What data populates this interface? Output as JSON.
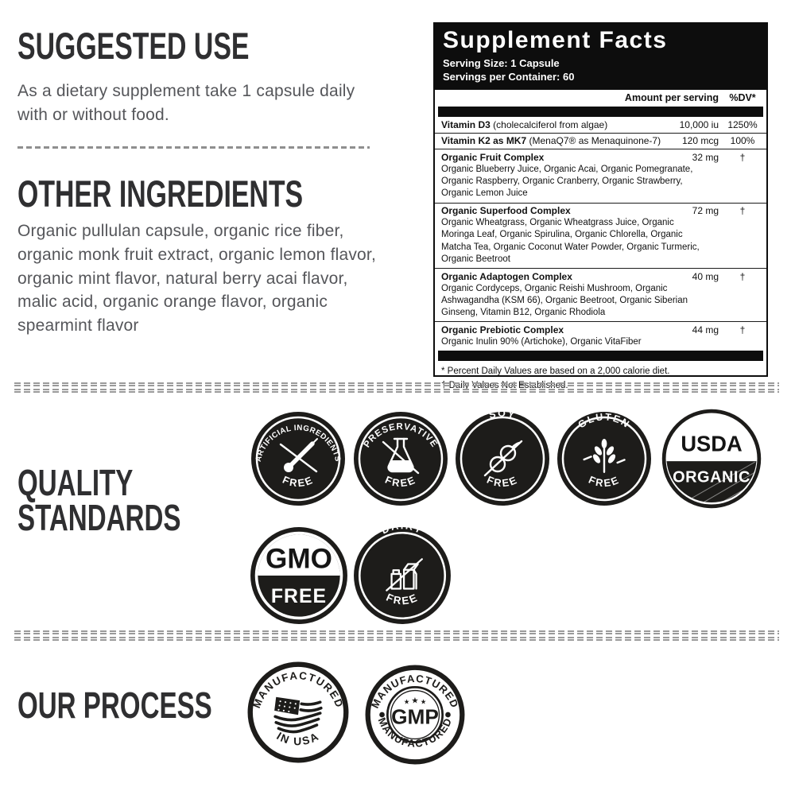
{
  "colors": {
    "ink": "#0d0d0d",
    "badge_dark": "#1d1c1a",
    "heading": "#2f2f31",
    "body_text": "#55565a",
    "dash": "#9a9a9a"
  },
  "suggested_use": {
    "title": "SUGGESTED USE",
    "body": "As a dietary supplement take 1 capsule daily with or without food."
  },
  "other_ingredients": {
    "title": "OTHER INGREDIENTS",
    "body": "Organic pullulan capsule, organic rice fiber, organic monk fruit extract, organic lemon flavor, organic mint flavor, natural berry acai flavor, malic acid, organic orange flavor, organic spearmint flavor"
  },
  "supplement_facts": {
    "title": "Supplement Facts",
    "serving_size": "Serving Size: 1 Capsule",
    "servings_per_container": "Servings per Container: 60",
    "columns": {
      "amount": "Amount per serving",
      "dv": "%DV*"
    },
    "rows": [
      {
        "name": "Vitamin D3",
        "detail": " (cholecalciferol from algae)",
        "amount": "10,000 iu",
        "dv": "1250%",
        "sub": ""
      },
      {
        "name": "Vitamin K2 as MK7",
        "detail": " (MenaQ7® as Menaquinone-7)",
        "amount": "120 mcg",
        "dv": "100%",
        "sub": ""
      },
      {
        "name": "Organic Fruit Complex",
        "detail": "",
        "amount": "32 mg",
        "dv": "†",
        "sub": "Organic Blueberry Juice, Organic Acai, Organic Pomegranate, Organic Raspberry, Organic Cranberry, Organic Strawberry, Organic Lemon Juice"
      },
      {
        "name": "Organic Superfood Complex",
        "detail": "",
        "amount": "72 mg",
        "dv": "†",
        "sub": "Organic Wheatgrass, Organic Wheatgrass Juice, Organic Moringa Leaf, Organic Spirulina, Organic Chlorella, Organic Matcha Tea, Organic Coconut Water Powder, Organic Turmeric, Organic Beetroot"
      },
      {
        "name": "Organic Adaptogen Complex",
        "detail": "",
        "amount": "40 mg",
        "dv": "†",
        "sub": "Organic Cordyceps, Organic Reishi Mushroom, Organic Ashwagandha (KSM 66), Organic Beetroot, Organic Siberian Ginseng, Vitamin B12, Organic Rhodiola"
      },
      {
        "name": "Organic Prebiotic Complex",
        "detail": "",
        "amount": "44 mg",
        "dv": "†",
        "sub": "Organic Inulin 90% (Artichoke), Organic VitaFiber"
      }
    ],
    "footnotes": {
      "line1": "* Percent Daily Values are based on a 2,000 calorie diet.",
      "line2": "† Daily Values Not Established."
    }
  },
  "quality_standards": {
    "title_line1": "QUALITY",
    "title_line2": "STANDARDS",
    "badges": [
      {
        "top": "ARTIFICIAL INGREDIENTS",
        "bottom": "FREE",
        "icon": "dropper-crossed-icon"
      },
      {
        "top": "PRESERVATIVE",
        "bottom": "FREE",
        "icon": "flask-crossed-icon"
      },
      {
        "top": "SOY",
        "bottom": "FREE",
        "icon": "soybean-crossed-icon"
      },
      {
        "top": "GLUTEN",
        "bottom": "FREE",
        "icon": "wheat-crossed-icon"
      },
      {
        "top": "USDA",
        "bottom": "ORGANIC",
        "icon": "usda-organic-seal"
      },
      {
        "top": "GMO",
        "bottom": "FREE",
        "icon": "gmo-free-seal"
      },
      {
        "top": "DAIRY",
        "bottom": "FREE",
        "icon": "milk-crossed-icon"
      }
    ]
  },
  "our_process": {
    "title": "OUR PROCESS",
    "badges": [
      {
        "top": "MANUFACTURED",
        "bottom": "IN USA",
        "icon": "usa-flag-icon"
      },
      {
        "top": "MANUFACTURED",
        "center": "GMP",
        "bottom": "MANUFACTURED",
        "icon": "gmp-stars-icon"
      }
    ]
  }
}
